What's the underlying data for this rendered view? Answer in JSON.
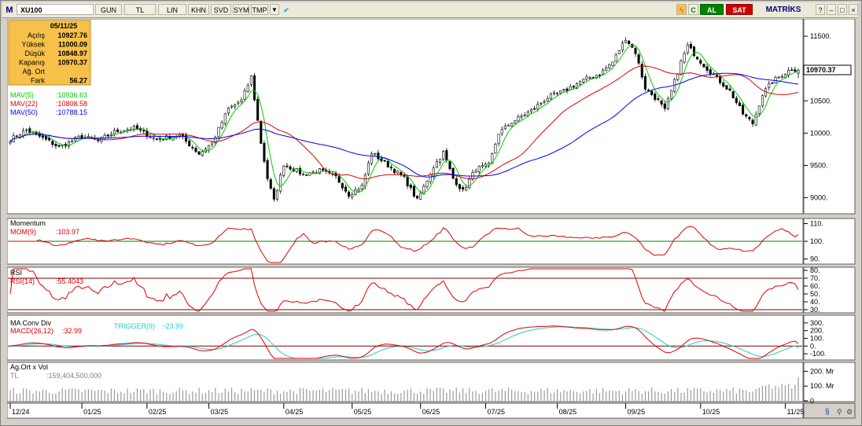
{
  "toolbar": {
    "symbol_prefix": "M",
    "symbol": "XU100",
    "buttons": [
      "GUN",
      "TL",
      "LIN",
      "KHN",
      "SVD",
      "SYM",
      "TMP"
    ],
    "al_label": "AL",
    "sat_label": "SAT",
    "brand": "MATRİKS",
    "colors": {
      "al": "#008000",
      "sat": "#cc0000",
      "brand": "#000080"
    }
  },
  "ohlc_box": {
    "date": "05/11/25",
    "rows": [
      {
        "label": "Açılış",
        "value": "10927.76"
      },
      {
        "label": "Yüksek",
        "value": "11000.09"
      },
      {
        "label": "Düşük",
        "value": "10848.97"
      },
      {
        "label": "Kapanış",
        "value": "10970.37"
      },
      {
        "label": "Ağ. Ort",
        "value": ""
      },
      {
        "label": "Fark",
        "value": "56.27"
      }
    ],
    "background": "#f7c04a"
  },
  "price_panel": {
    "last_price_label": "10970.37",
    "legend": [
      {
        "label": "MAV(5)",
        "value": ":10936.63",
        "color": "#00cc00"
      },
      {
        "label": "MAV(22)",
        "value": ":10808.58",
        "color": "#e00000"
      },
      {
        "label": "MAV(50)",
        "value": ":10788.15",
        "color": "#0000ee"
      }
    ]
  },
  "momentum_panel": {
    "title": "Momentum",
    "legend": [
      {
        "label": "MOM(9)",
        "value": ":103.97",
        "color": "#e00000"
      }
    ]
  },
  "rsi_panel": {
    "title": "RSI",
    "legend": [
      {
        "label": "RSI(14)",
        "value": ":55.4043",
        "color": "#e00000"
      }
    ]
  },
  "macd_panel": {
    "title": "MA Conv Div",
    "legend": [
      {
        "label": "MACD(26,12)",
        "value": ":32.99",
        "color": "#e00000"
      },
      {
        "label": "TRIGGER(9)",
        "value": ":-23.99",
        "color": "#22cccc"
      }
    ]
  },
  "volume_panel": {
    "title": "Ag.Ort x Vol",
    "legend": [
      {
        "label": "TL",
        "value": ":159,404,500,000",
        "color": "#808080"
      }
    ]
  },
  "chart_data": [
    {
      "type": "candlestick",
      "name": "price",
      "ylim": [
        8800,
        11720
      ],
      "yticks": [
        9000,
        9500,
        10000,
        10500,
        11000,
        11500
      ],
      "ytick_labels": [
        "9000.",
        "9500.",
        "10000.",
        "10500.",
        "",
        "11500."
      ],
      "x_tick_labels": [
        "12/24",
        "01/25",
        "02/25",
        "03/25",
        "04/25",
        "05/25",
        "06/25",
        "07/25",
        "08/25",
        "09/25",
        "10/25",
        "11/25"
      ],
      "x_tick_positions": [
        0,
        22,
        42,
        61,
        84,
        105,
        126,
        146,
        168,
        189,
        212,
        238
      ],
      "bar_count": 243,
      "anchors": [
        [
          0,
          9900
        ],
        [
          5,
          10050
        ],
        [
          12,
          9870
        ],
        [
          15,
          9780
        ],
        [
          22,
          9950
        ],
        [
          27,
          9880
        ],
        [
          32,
          10020
        ],
        [
          38,
          10080
        ],
        [
          45,
          9900
        ],
        [
          52,
          9970
        ],
        [
          58,
          9680
        ],
        [
          62,
          9850
        ],
        [
          67,
          10380
        ],
        [
          71,
          10500
        ],
        [
          74,
          10870
        ],
        [
          77,
          9850
        ],
        [
          79,
          9300
        ],
        [
          81,
          8950
        ],
        [
          84,
          9520
        ],
        [
          90,
          9360
        ],
        [
          95,
          9420
        ],
        [
          100,
          9320
        ],
        [
          104,
          9050
        ],
        [
          108,
          9180
        ],
        [
          111,
          9700
        ],
        [
          116,
          9500
        ],
        [
          121,
          9300
        ],
        [
          125,
          8960
        ],
        [
          130,
          9480
        ],
        [
          133,
          9700
        ],
        [
          136,
          9300
        ],
        [
          139,
          9100
        ],
        [
          143,
          9450
        ],
        [
          147,
          9500
        ],
        [
          150,
          10000
        ],
        [
          154,
          10170
        ],
        [
          160,
          10350
        ],
        [
          165,
          10550
        ],
        [
          170,
          10650
        ],
        [
          176,
          10820
        ],
        [
          181,
          10920
        ],
        [
          185,
          11100
        ],
        [
          189,
          11470
        ],
        [
          192,
          11250
        ],
        [
          195,
          10700
        ],
        [
          199,
          10500
        ],
        [
          201,
          10350
        ],
        [
          204,
          10800
        ],
        [
          206,
          11100
        ],
        [
          208,
          11350
        ],
        [
          211,
          11170
        ],
        [
          213,
          11050
        ],
        [
          217,
          10850
        ],
        [
          221,
          10650
        ],
        [
          225,
          10300
        ],
        [
          228,
          10150
        ],
        [
          231,
          10600
        ],
        [
          234,
          10800
        ],
        [
          237,
          10900
        ],
        [
          240,
          11000
        ],
        [
          242,
          10970
        ]
      ],
      "last": {
        "open": 10927.76,
        "high": 11000.09,
        "low": 10848.97,
        "close": 10970.37
      },
      "moving_averages": [
        {
          "name": "MAV(5)",
          "period": 5,
          "last": 10936.63
        },
        {
          "name": "MAV(22)",
          "period": 22,
          "last": 10808.58
        },
        {
          "name": "MAV(50)",
          "period": 50,
          "last": 10788.15
        }
      ]
    },
    {
      "type": "line",
      "name": "MOM(9)",
      "ylim": [
        88,
        112
      ],
      "yticks": [
        90,
        100,
        110
      ],
      "ytick_labels": [
        "90.",
        "100.",
        "110."
      ],
      "reference_line": 100,
      "last": 103.97
    },
    {
      "type": "line",
      "name": "RSI(14)",
      "ylim": [
        28,
        82
      ],
      "yticks": [
        30,
        40,
        50,
        60,
        70,
        80
      ],
      "ytick_labels": [
        "30.",
        "40.",
        "50.",
        "60.",
        "70.",
        "80."
      ],
      "reference_lines": [
        30,
        70
      ],
      "last": 55.4043
    },
    {
      "type": "line",
      "name": "MACD",
      "ylim": [
        -160,
        380
      ],
      "yticks": [
        -100,
        0,
        100,
        200,
        300
      ],
      "ytick_labels": [
        "-100.",
        "0.",
        "100.",
        "200.",
        "300."
      ],
      "reference_line": 0,
      "series": [
        {
          "name": "MACD(26,12)",
          "last": 32.99
        },
        {
          "name": "TRIGGER(9)",
          "last": -23.99
        }
      ]
    },
    {
      "type": "bar",
      "name": "volume",
      "ylim": [
        0,
        250
      ],
      "yticks": [
        0,
        100,
        200
      ],
      "ytick_labels": [
        "0",
        "100. Mr",
        "200. Mr"
      ],
      "last": 159.4045
    }
  ]
}
